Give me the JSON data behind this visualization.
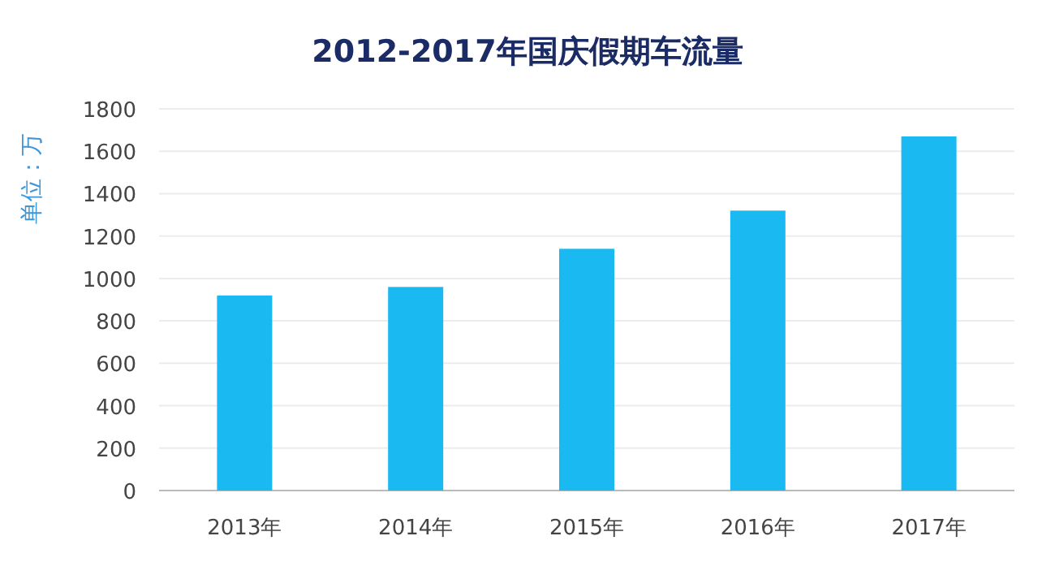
{
  "chart_data": {
    "type": "bar",
    "title": "2012-2017年国庆假期车流量",
    "ylabel": "单位：万",
    "categories": [
      "2013年",
      "2014年",
      "2015年",
      "2016年",
      "2017年"
    ],
    "values": [
      920,
      960,
      1140,
      1320,
      1670
    ],
    "color": "#1bb9f1",
    "ylim": [
      0,
      1800
    ],
    "yticks": [
      0,
      200,
      400,
      600,
      800,
      1000,
      1200,
      1400,
      1600,
      1800
    ],
    "grid": "y"
  }
}
